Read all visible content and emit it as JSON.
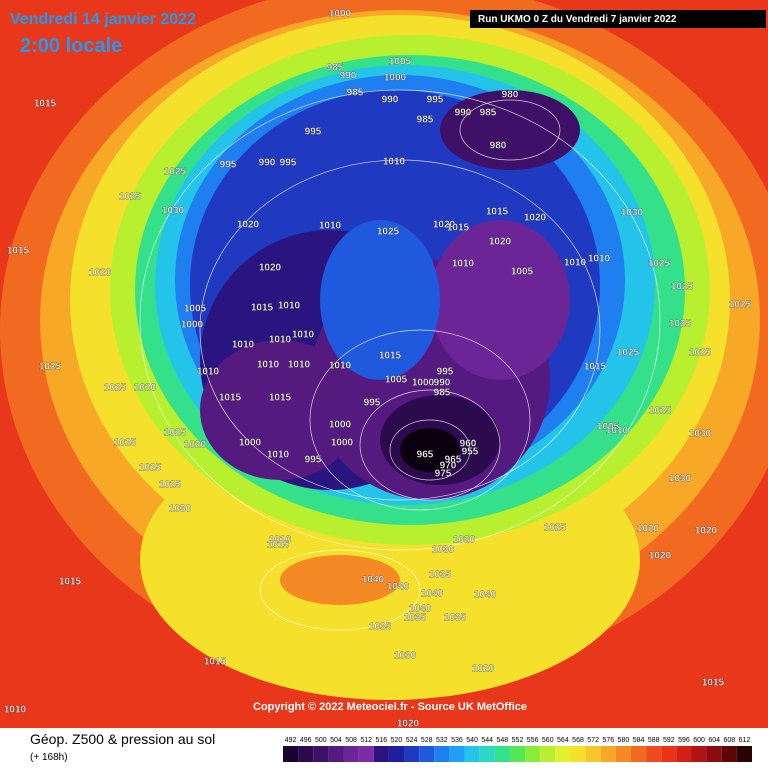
{
  "header": {
    "title": "Vendredi 14 janvier 2022",
    "time": "2:00 locale",
    "run": "Run UKMO 0 Z du Vendredi 7 janvier 2022"
  },
  "copyright": "Copyright © 2022 Meteociel.fr - Source UK MetOffice",
  "footer": {
    "title": "Géop. Z500 & pression au sol",
    "subtitle": "(+ 168h)"
  },
  "colorbar": {
    "ticks": [
      492,
      496,
      500,
      504,
      508,
      512,
      516,
      520,
      524,
      528,
      532,
      536,
      540,
      544,
      548,
      552,
      556,
      560,
      564,
      568,
      572,
      576,
      580,
      584,
      588,
      592,
      596,
      600,
      604,
      608,
      612
    ],
    "colors": [
      "#1a0330",
      "#2d0a4e",
      "#3f1068",
      "#551a80",
      "#6b2596",
      "#7c2aa6",
      "#2a1580",
      "#1e1e9e",
      "#1f3ac0",
      "#1f5ade",
      "#1f7ef0",
      "#1fa0f5",
      "#24c3ea",
      "#2ad9c4",
      "#35e08a",
      "#55e655",
      "#8aec3a",
      "#b8f030",
      "#e2f02e",
      "#f5e12c",
      "#f7c62a",
      "#f7a827",
      "#f58a24",
      "#f26a20",
      "#ee4c1c",
      "#e83319",
      "#d41f16",
      "#b01413",
      "#8a0c10",
      "#5c060a",
      "#2a0204"
    ]
  },
  "isobar_labels": [
    1000,
    1015,
    1025,
    1025,
    1030,
    1015,
    1020,
    1005,
    1000,
    985,
    990,
    985,
    990,
    995,
    980,
    985,
    990,
    985,
    980,
    995,
    995,
    990,
    995,
    1010,
    1010,
    1025,
    1020,
    1015,
    1015,
    1020,
    1030,
    1020,
    1010,
    1005,
    1010,
    1010,
    1025,
    1025,
    1025,
    1025,
    1025,
    1025,
    1020,
    1020,
    1015,
    1010,
    1005,
    1000,
    1010,
    1010,
    1010,
    1010,
    1010,
    1010,
    1010,
    1015,
    995,
    990,
    985,
    1005,
    1000,
    995,
    1000,
    1015,
    1015,
    1000,
    1010,
    995,
    1000,
    965,
    960,
    955,
    965,
    970,
    975,
    1025,
    1025,
    1020,
    1025,
    1025,
    1020,
    1025,
    1025,
    1030,
    1015,
    1005,
    1010,
    1025,
    1030,
    1030,
    1020,
    1020,
    1020,
    1025,
    1020,
    1010,
    1015,
    1030,
    1035,
    1040,
    1040,
    1040,
    1040,
    1040,
    1035,
    1035,
    1035,
    1015,
    1015,
    1030,
    1020,
    1015,
    1010,
    1020
  ]
}
